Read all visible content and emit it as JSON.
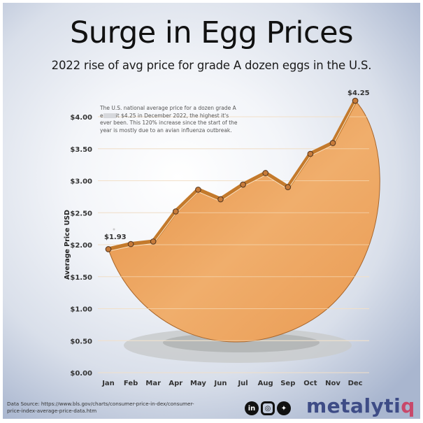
{
  "header": {
    "title": "Surge in Egg Prices",
    "subtitle": "2022 rise of avg price for grade A dozen eggs in the U.S."
  },
  "annotation": {
    "line1": "The U.S. national average price for a dozen grade A",
    "line2_prefix": "e",
    "line2_suffix": "it $4.25 in December 2022, the highest it's",
    "line3": "ever been. This 120% increase since the start of the",
    "line4": "year is mostly due to an avian influenza outbreak."
  },
  "footer": {
    "source_label": "Data Source:",
    "source_text": " https://www.bls.gov/charts/consumer-price-in-dex/consumer-price-index-average-price-data.htm",
    "social_icons": [
      "linkedin-icon",
      "instagram-icon",
      "twitter-icon"
    ],
    "social_glyphs": {
      "linkedin": "in",
      "instagram": "◎",
      "twitter": "✦"
    },
    "brand_main": "metalyti",
    "brand_end": "q"
  },
  "colors": {
    "fill_top": "#e8944a",
    "fill_bottom": "#f3b878",
    "line": "#c47a2c",
    "marker_fill": "#c77b3a",
    "marker_stroke": "#5a3a20",
    "brand": "#3e4c86",
    "brand_accent": "#c8486a"
  },
  "chart_data": {
    "type": "area",
    "title": "Surge in Egg Prices",
    "subtitle": "2022 rise of avg price for grade A dozen eggs in the U.S.",
    "xlabel": "",
    "ylabel": "Average Price USD",
    "categories": [
      "Jan",
      "Feb",
      "Mar",
      "Apr",
      "May",
      "Jun",
      "Jul",
      "Aug",
      "Sep",
      "Oct",
      "Nov",
      "Dec"
    ],
    "values": [
      1.93,
      2.01,
      2.05,
      2.52,
      2.86,
      2.71,
      2.94,
      3.12,
      2.9,
      3.42,
      3.59,
      4.25
    ],
    "data_labels": {
      "Jan": "$1.93",
      "Dec": "$4.25"
    },
    "yticks": [
      "$0.00",
      "$0.50",
      "$1.00",
      "$1.50",
      "$2.00",
      "$2.50",
      "$3.00",
      "$3.50",
      "$4.00"
    ],
    "ylim": [
      0,
      4.25
    ],
    "grid": true,
    "legend": "none",
    "annotation": "The U.S. national average price for a dozen grade A eggs hit $4.25 in December 2022, the highest it's ever been. This 120% increase since the start of the year is mostly due to an avian influenza outbreak."
  }
}
